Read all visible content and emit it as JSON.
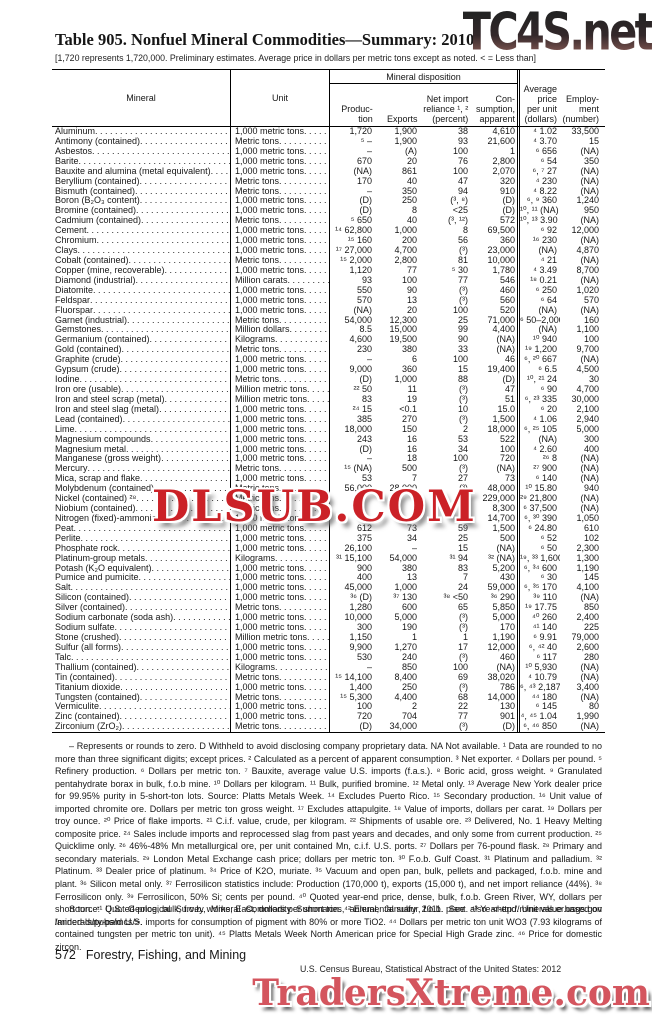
{
  "title": "Table 905. Nonfuel Mineral Commodities—Summary: 2010",
  "bracket_note": "[1,720 represents 1,720,000. Preliminary estimates. Average price in dollars per metric tons except as noted. < = Less than]",
  "watermarks": {
    "top_right": "TC4S.net",
    "center": "DLSUB.COM",
    "bottom_right": "TradersXtreme.com"
  },
  "table": {
    "headers": {
      "mineral": "Mineral",
      "unit": "Unit",
      "disposition": "Mineral disposition",
      "production": "Produc-\ntion",
      "exports": "Exports",
      "net_import": "Net import\nreliance ¹, ²\n(percent)",
      "consumption": "Con-\nsumption,\napparent",
      "price": "Average\nprice\nper unit\n(dollars)",
      "employment": "Employ-\nment\n(number)"
    },
    "rows": [
      {
        "name": "Aluminum",
        "unit": "1,000 metric tons",
        "prod": "1,720",
        "exp": "1,900",
        "imp": "38",
        "cons": "4,610",
        "price": "⁴ 1.02",
        "emp": "33,500"
      },
      {
        "name": "Antimony (contained)",
        "unit": "Metric tons",
        "prod": "⁵ –",
        "exp": "1,900",
        "imp": "93",
        "cons": "21,600",
        "price": "⁴ 3.70",
        "emp": "15"
      },
      {
        "name": "Asbestos",
        "unit": "1,000 metric tons",
        "prod": "–",
        "exp": "(A)",
        "imp": "100",
        "cons": "1",
        "price": "⁶ 656",
        "emp": "(NA)"
      },
      {
        "name": "Barite",
        "unit": "1,000 metric tons",
        "prod": "670",
        "exp": "20",
        "imp": "76",
        "cons": "2,800",
        "price": "⁶ 54",
        "emp": "350"
      },
      {
        "name": "Bauxite and alumina (metal equivalent)",
        "unit": "1,000 metric tons",
        "prod": "(NA)",
        "exp": "861",
        "imp": "100",
        "cons": "2,070",
        "price": "⁶, ⁷ 27",
        "emp": "(NA)"
      },
      {
        "name": "Beryllium (contained)",
        "unit": "Metric tons",
        "prod": "170",
        "exp": "40",
        "imp": "47",
        "cons": "320",
        "price": "⁴ 230",
        "emp": "(NA)"
      },
      {
        "name": "Bismuth (contained)",
        "unit": "Metric tons",
        "prod": "–",
        "exp": "350",
        "imp": "94",
        "cons": "910",
        "price": "⁴ 8.22",
        "emp": "(NA)"
      },
      {
        "name": "Boron (B₂O₃ content)",
        "unit": "1,000 metric tons",
        "prod": "(D)",
        "exp": "250",
        "imp": "(³, ⁸)",
        "cons": "(D)",
        "price": "⁶, ⁹ 360",
        "emp": "1,240"
      },
      {
        "name": "Bromine (contained)",
        "unit": "1,000 metric tons",
        "prod": "(D)",
        "exp": "8",
        "imp": "<25",
        "cons": "(D)",
        "price": "¹⁰, ¹¹ (NA)",
        "emp": "950"
      },
      {
        "name": "Cadmium (contained)",
        "unit": "Metric tons",
        "prod": "⁵ 650",
        "exp": "40",
        "imp": "(³, ¹²)",
        "cons": "572",
        "price": "¹⁰, ¹³ 3.90",
        "emp": "(NA)"
      },
      {
        "name": "Cement",
        "unit": "1,000 metric tons",
        "prod": "¹⁴ 62,800",
        "exp": "1,000",
        "imp": "8",
        "cons": "69,500",
        "price": "⁶ 92",
        "emp": "12,000"
      },
      {
        "name": "Chromium",
        "unit": "1,000 metric tons",
        "prod": "¹⁵ 160",
        "exp": "200",
        "imp": "56",
        "cons": "360",
        "price": "¹⁶ 230",
        "emp": "(NA)"
      },
      {
        "name": "Clays",
        "unit": "1,000 metric tons",
        "prod": "¹⁷ 27,000",
        "exp": "4,700",
        "imp": "(³)",
        "cons": "23,000",
        "price": "(NA)",
        "emp": "4,870"
      },
      {
        "name": "Cobalt (contained)",
        "unit": "Metric tons",
        "prod": "¹⁵ 2,000",
        "exp": "2,800",
        "imp": "81",
        "cons": "10,000",
        "price": "⁴ 21",
        "emp": "(NA)"
      },
      {
        "name": "Copper (mine, recoverable)",
        "unit": "1,000 metric tons",
        "prod": "1,120",
        "exp": "77",
        "imp": "⁵ 30",
        "cons": "1,780",
        "price": "⁴ 3.49",
        "emp": "8,700"
      },
      {
        "name": "Diamond (industrial)",
        "unit": "Million carats",
        "prod": "93",
        "exp": "100",
        "imp": "77",
        "cons": "546",
        "price": "¹⁸ 0.21",
        "emp": "(NA)"
      },
      {
        "name": "Diatomite",
        "unit": "1,000 metric tons",
        "prod": "550",
        "exp": "90",
        "imp": "(³)",
        "cons": "460",
        "price": "⁶ 250",
        "emp": "1,020"
      },
      {
        "name": "Feldspar",
        "unit": "1,000 metric tons",
        "prod": "570",
        "exp": "13",
        "imp": "(³)",
        "cons": "560",
        "price": "⁶ 64",
        "emp": "570"
      },
      {
        "name": "Fluorspar",
        "unit": "1,000 metric tons",
        "prod": "(NA)",
        "exp": "20",
        "imp": "100",
        "cons": "520",
        "price": "(NA)",
        "emp": "(NA)"
      },
      {
        "name": "Garnet (industrial)",
        "unit": "Metric tons",
        "prod": "54,000",
        "exp": "12,300",
        "imp": "25",
        "cons": "71,000",
        "price": "⁶ 50–2,000",
        "emp": "160"
      },
      {
        "name": "Gemstones",
        "unit": "Million dollars",
        "prod": "8.5",
        "exp": "15,000",
        "imp": "99",
        "cons": "4,400",
        "price": "(NA)",
        "emp": "1,100"
      },
      {
        "name": "Germanium (contained)",
        "unit": "Kilograms",
        "prod": "4,600",
        "exp": "19,500",
        "imp": "90",
        "cons": "(NA)",
        "price": "¹⁰ 940",
        "emp": "100"
      },
      {
        "name": "Gold (contained)",
        "unit": "Metric tons",
        "prod": "230",
        "exp": "380",
        "imp": "33",
        "cons": "(NA)",
        "price": "¹⁹ 1,200",
        "emp": "9,700"
      },
      {
        "name": "Graphite (crude)",
        "unit": "1,000 metric tons",
        "prod": "–",
        "exp": "6",
        "imp": "100",
        "cons": "46",
        "price": "⁶, ²⁰ 667",
        "emp": "(NA)"
      },
      {
        "name": "Gypsum (crude)",
        "unit": "1,000 metric tons",
        "prod": "9,000",
        "exp": "360",
        "imp": "15",
        "cons": "19,400",
        "price": "⁶ 6.5",
        "emp": "4,500"
      },
      {
        "name": "Iodine",
        "unit": "Metric tons",
        "prod": "(D)",
        "exp": "1,000",
        "imp": "88",
        "cons": "(D)",
        "price": "¹⁰, ²¹ 24",
        "emp": "30"
      },
      {
        "name": "Iron ore (usable)",
        "unit": "Million metric tons",
        "prod": "²² 50",
        "exp": "11",
        "imp": "(³)",
        "cons": "47",
        "price": "⁶ 90",
        "emp": "4,700"
      },
      {
        "name": "Iron and steel scrap (metal)",
        "unit": "Million metric tons",
        "prod": "83",
        "exp": "19",
        "imp": "(³)",
        "cons": "51",
        "price": "⁶, ²³ 335",
        "emp": "30,000"
      },
      {
        "name": "Iron and steel slag (metal)",
        "unit": "1,000 metric tons",
        "prod": "²⁴ 15",
        "exp": "<0.1",
        "imp": "10",
        "cons": "15.0",
        "price": "⁶ 20",
        "emp": "2,100"
      },
      {
        "name": "Lead (contained)",
        "unit": "1,000 metric tons",
        "prod": "385",
        "exp": "270",
        "imp": "(³)",
        "cons": "1,500",
        "price": "⁴ 1.06",
        "emp": "2,940"
      },
      {
        "name": "Lime",
        "unit": "1,000 metric tons",
        "prod": "18,000",
        "exp": "150",
        "imp": "2",
        "cons": "18,000",
        "price": "⁶, ²⁵ 105",
        "emp": "5,000"
      },
      {
        "name": "Magnesium compounds",
        "unit": "1,000 metric tons",
        "prod": "243",
        "exp": "16",
        "imp": "53",
        "cons": "522",
        "price": "(NA)",
        "emp": "300"
      },
      {
        "name": "Magnesium metal",
        "unit": "1,000 metric tons",
        "prod": "(D)",
        "exp": "16",
        "imp": "34",
        "cons": "100",
        "price": "⁴ 2.60",
        "emp": "400"
      },
      {
        "name": "Manganese (gross weight)",
        "unit": "1,000 metric tons",
        "prod": "–",
        "exp": "18",
        "imp": "100",
        "cons": "720",
        "price": "²⁶ 8",
        "emp": "(NA)"
      },
      {
        "name": "Mercury",
        "unit": "Metric tons",
        "prod": "¹⁵ (NA)",
        "exp": "500",
        "imp": "(³)",
        "cons": "(NA)",
        "price": "²⁷ 900",
        "emp": "(NA)"
      },
      {
        "name": "Mica, scrap and flake",
        "unit": "1,000 metric tons",
        "prod": "53",
        "exp": "7",
        "imp": "27",
        "cons": "73",
        "price": "⁶ 140",
        "emp": "(NA)"
      },
      {
        "name": "Molybdenum (contained)",
        "unit": "Metric tons",
        "prod": "56,000",
        "exp": "28,000",
        "imp": "(³)",
        "cons": "48,000",
        "price": "¹⁰ 15.80",
        "emp": "940"
      },
      {
        "name": "Nickel (contained) ²⁸",
        "unit": "Metric tons",
        "prod": "",
        "exp": "",
        "imp": "",
        "cons": "229,000",
        "price": "²⁹ 21,800",
        "emp": "(NA)"
      },
      {
        "name": "Niobium (contained)",
        "unit": "Metric tons",
        "prod": "",
        "exp": "",
        "imp": "",
        "cons": "8,300",
        "price": "⁶ 37,500",
        "emp": "(NA)"
      },
      {
        "name": "Nitrogen (fixed)-ammonia",
        "unit": "1,000 metric tons",
        "prod": "",
        "exp": "",
        "imp": "",
        "cons": "14,700",
        "price": "⁶, ³⁰ 390",
        "emp": "1,050"
      },
      {
        "name": "Peat",
        "unit": "1,000 metric tons",
        "prod": "612",
        "exp": "73",
        "imp": "59",
        "cons": "1,500",
        "price": "⁶ 24.80",
        "emp": "610"
      },
      {
        "name": "Perlite",
        "unit": "1,000 metric tons",
        "prod": "375",
        "exp": "34",
        "imp": "25",
        "cons": "500",
        "price": "⁶ 52",
        "emp": "102"
      },
      {
        "name": "Phosphate rock",
        "unit": "1,000 metric tons",
        "prod": "26,100",
        "exp": "–",
        "imp": "15",
        "cons": "(NA)",
        "price": "⁶ 50",
        "emp": "2,300"
      },
      {
        "name": "Platinum-group metals",
        "unit": "Kilograms",
        "prod": "³¹ 15,100",
        "exp": "54,000",
        "imp": "³¹ 94",
        "cons": "³² (NA)",
        "price": "¹⁹, ³³ 1,600",
        "emp": "1,300"
      },
      {
        "name": "Potash (K₂O equivalent)",
        "unit": "1,000 metric tons",
        "prod": "900",
        "exp": "380",
        "imp": "83",
        "cons": "5,200",
        "price": "⁶, ³⁴ 600",
        "emp": "1,190"
      },
      {
        "name": "Pumice and pumicite",
        "unit": "1,000 metric tons",
        "prod": "400",
        "exp": "13",
        "imp": "7",
        "cons": "430",
        "price": "⁶ 30",
        "emp": "145"
      },
      {
        "name": "Salt",
        "unit": "1,000 metric tons",
        "prod": "45,000",
        "exp": "1,000",
        "imp": "24",
        "cons": "59,000",
        "price": "⁶, ³⁵ 170",
        "emp": "4,100"
      },
      {
        "name": "Silicon (contained)",
        "unit": "1,000 metric tons",
        "prod": "³⁶ (D)",
        "exp": "³⁷ 130",
        "imp": "³⁸ <50",
        "cons": "³⁶ 290",
        "price": "³⁹ 110",
        "emp": "(NA)"
      },
      {
        "name": "Silver (contained)",
        "unit": "Metric tons",
        "prod": "1,280",
        "exp": "600",
        "imp": "65",
        "cons": "5,850",
        "price": "¹⁹ 17.75",
        "emp": "850"
      },
      {
        "name": "Sodium carbonate (soda ash)",
        "unit": "1,000 metric tons",
        "prod": "10,000",
        "exp": "5,000",
        "imp": "(³)",
        "cons": "5,000",
        "price": "⁴⁰ 260",
        "emp": "2,400"
      },
      {
        "name": "Sodium sulfate",
        "unit": "1,000 metric tons",
        "prod": "300",
        "exp": "190",
        "imp": "(³)",
        "cons": "170",
        "price": "⁴¹ 140",
        "emp": "225"
      },
      {
        "name": "Stone (crushed)",
        "unit": "Million metric tons",
        "prod": "1,150",
        "exp": "1",
        "imp": "1",
        "cons": "1,190",
        "price": "⁶ 9.91",
        "emp": "79,000"
      },
      {
        "name": "Sulfur (all forms)",
        "unit": "1,000 metric tons",
        "prod": "9,900",
        "exp": "1,270",
        "imp": "17",
        "cons": "12,000",
        "price": "⁶, ⁴² 40",
        "emp": "2,600"
      },
      {
        "name": "Talc",
        "unit": "1,000 metric tons",
        "prod": "530",
        "exp": "240",
        "imp": "(³)",
        "cons": "460",
        "price": "⁶ 117",
        "emp": "280"
      },
      {
        "name": "Thallium (contained)",
        "unit": "Kilograms",
        "prod": "–",
        "exp": "850",
        "imp": "100",
        "cons": "(NA)",
        "price": "¹⁰ 5,930",
        "emp": "(NA)"
      },
      {
        "name": "Tin (contained)",
        "unit": "Metric tons",
        "prod": "¹⁵ 14,100",
        "exp": "8,400",
        "imp": "69",
        "cons": "38,020",
        "price": "⁴ 10.79",
        "emp": "(NA)"
      },
      {
        "name": "Titanium dioxide",
        "unit": "1,000 metric tons",
        "prod": "1,400",
        "exp": "250",
        "imp": "(³)",
        "cons": "786",
        "price": "⁶, ⁴³ 2,187",
        "emp": "3,400"
      },
      {
        "name": "Tungsten (contained)",
        "unit": "Metric tons",
        "prod": "¹⁵ 5,300",
        "exp": "4,400",
        "imp": "68",
        "cons": "14,000",
        "price": "⁴⁴ 180",
        "emp": "(NA)"
      },
      {
        "name": "Vermiculite",
        "unit": "1,000 metric tons",
        "prod": "100",
        "exp": "2",
        "imp": "22",
        "cons": "130",
        "price": "⁶ 145",
        "emp": "80"
      },
      {
        "name": "Zinc (contained)",
        "unit": "1,000 metric tons",
        "prod": "720",
        "exp": "704",
        "imp": "77",
        "cons": "901",
        "price": "⁴, ⁴⁵ 1.04",
        "emp": "1,990"
      },
      {
        "name": "Zirconium (ZrO₂)",
        "unit": "Metric tons",
        "prod": "(D)",
        "exp": "34,000",
        "imp": "(³)",
        "cons": "(D)",
        "price": "⁶, ⁴⁶ 850",
        "emp": "(NA)"
      }
    ]
  },
  "footnotes": "– Represents or rounds to zero. D Withheld to avoid disclosing company proprietary data. NA Not available. ¹ Data are rounded to no more than three significant digits; except prices. ² Calculated as a percent of apparent consumption. ³ Net exporter. ⁴ Dollars per pound. ⁵ Refinery production. ⁶ Dollars per metric ton. ⁷ Bauxite, average value U.S. imports (f.a.s.). ⁸ Boric acid, gross weight. ⁹ Granulated pentahydrate borax in bulk, f.o.b mine. ¹⁰ Dollars per kilogram. ¹¹ Bulk, purified bromine. ¹² Metal only. ¹³ Average New York dealer price for 99.95% purity in 5-short-ton lots. Source: Platts Metals Week. ¹⁴ Excludes Puerto Rico. ¹⁵ Secondary production. ¹⁶ Unit value of imported chromite ore. Dollars per metric ton gross weight. ¹⁷ Excludes attapulgite. ¹⁸ Value of imports, dollars per carat. ¹⁹ Dollars per troy ounce. ²⁰ Price of flake imports. ²¹ C.i.f. value, crude, per kilogram. ²² Shipments of usable ore. ²³ Delivered, No. 1 Heavy Melting composite price. ²⁴ Sales include imports and reprocessed slag from past years and decades, and only some from current production. ²⁵ Quicklime only. ²⁶ 46%-48% Mn metallurgical ore, per unit contained Mn, c.i.f. U.S. ports. ²⁷ Dollars per 76-pound flask. ²⁸ Primary and secondary materials. ²⁹ London Metal Exchange cash price; dollars per metric ton. ³⁰ F.o.b. Gulf Coast. ³¹ Platinum and palladium. ³² Platinum. ³³ Dealer price of platinum. ³⁴ Price of K2O, muriate. ³⁵ Vacuum and open pan, bulk, pellets and packaged, f.o.b. mine and plant. ³⁶ Silicon metal only. ³⁷ Ferrosilicon statistics include: Production (170,000 t), exports (15,000 t), and net import reliance (44%). ³⁸ Ferrosilicon only. ³⁹ Ferrosilicon, 50% Si; cents per pound. ⁴⁰ Quoted year-end price, dense, bulk, f.o.b. Green River, WY, dollars per short ton. ⁴¹ Quoted price, bulk, f.o.b. works, East, dollars per short ton. ⁴² Elemental sulfur, f.o.b. plant. ⁴³ Year-end. Unit value based on landed-duty-paid U.S. imports for consumption of pigment with 80% or more TiO2. ⁴⁴ Dollars per metric ton unit WO3 (7.93 kilograms of contained tungsten per metric ton unit). ⁴⁵ Platts Metals Week North American price for Special High Grade zinc. ⁴⁶ Price for domestic zircon.",
  "source": "Source: U.S. Geological Survey, Mineral Commodity Summaries, annual, January 2011. See also <http://minerals.er.usgs.gov /minerals/pubs/mcs/>.",
  "footer": {
    "page_number": "572",
    "section": "Forestry, Fishing, and Mining",
    "census_line": "U.S. Census Bureau, Statistical Abstract of the United States: 2012"
  }
}
